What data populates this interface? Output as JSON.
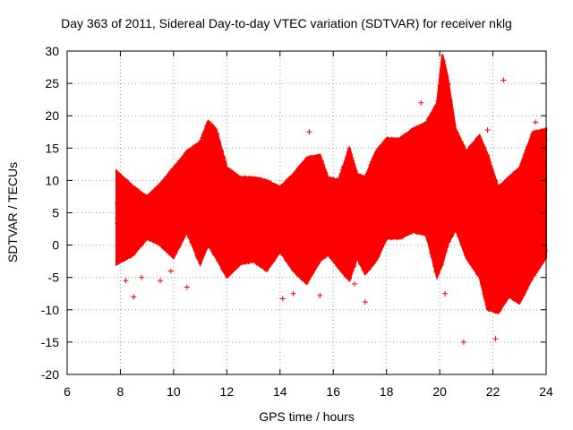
{
  "chart_data": {
    "type": "scatter",
    "title": "Day 363 of 2011, Sidereal Day-to-day VTEC variation (SDTVAR) for receiver nklg",
    "xlabel": "GPS time / hours",
    "ylabel": "SDTVAR / TECUs",
    "xlim": [
      6,
      24
    ],
    "ylim": [
      -20,
      30
    ],
    "xticks": [
      6,
      8,
      10,
      12,
      14,
      16,
      18,
      20,
      22,
      24
    ],
    "yticks": [
      -20,
      -15,
      -10,
      -5,
      0,
      5,
      10,
      15,
      20,
      25,
      30
    ],
    "grid": true,
    "marker": "+",
    "color": "#ff0000",
    "envelope": {
      "x": [
        7.85,
        8.5,
        9.0,
        9.5,
        10.0,
        10.5,
        11.0,
        11.3,
        11.6,
        12.0,
        12.5,
        13.0,
        13.5,
        14.0,
        14.5,
        15.0,
        15.5,
        15.8,
        16.2,
        16.6,
        16.9,
        17.2,
        17.6,
        18.0,
        18.5,
        19.0,
        19.5,
        19.9,
        20.1,
        20.3,
        20.6,
        21.0,
        21.5,
        21.8,
        22.2,
        22.6,
        23.0,
        23.5,
        24.0
      ],
      "upper": [
        11.5,
        9.0,
        7.5,
        9.5,
        12.0,
        14.5,
        16.0,
        19.2,
        18.0,
        12.0,
        10.5,
        10.5,
        10.0,
        9.0,
        11.0,
        13.5,
        14.0,
        10.5,
        10.0,
        15.0,
        11.0,
        10.5,
        14.5,
        16.5,
        16.5,
        18.0,
        19.0,
        22.0,
        29.5,
        26.0,
        18.0,
        14.5,
        17.0,
        14.0,
        9.0,
        10.5,
        12.0,
        17.5,
        18.0
      ],
      "lower": [
        -3.0,
        -1.5,
        1.0,
        0.0,
        -2.0,
        2.0,
        -3.0,
        0.0,
        -2.0,
        -5.0,
        -3.0,
        -2.5,
        -4.0,
        -1.0,
        -4.0,
        -6.0,
        -2.5,
        -1.5,
        -3.5,
        -5.5,
        -2.0,
        -4.5,
        -2.5,
        1.0,
        1.0,
        2.0,
        1.5,
        -5.0,
        -3.0,
        0.0,
        2.5,
        -2.0,
        -5.0,
        -10.0,
        -10.5,
        -8.0,
        -9.0,
        -5.0,
        -2.0
      ]
    },
    "outliers": [
      {
        "x": 8.2,
        "y": -5.5
      },
      {
        "x": 8.5,
        "y": -8.0
      },
      {
        "x": 8.8,
        "y": -5.0
      },
      {
        "x": 9.5,
        "y": -5.5
      },
      {
        "x": 9.9,
        "y": -4.0
      },
      {
        "x": 10.5,
        "y": -6.5
      },
      {
        "x": 14.1,
        "y": -8.3
      },
      {
        "x": 14.5,
        "y": -7.5
      },
      {
        "x": 15.5,
        "y": -7.8
      },
      {
        "x": 15.1,
        "y": 17.5
      },
      {
        "x": 17.2,
        "y": -8.8
      },
      {
        "x": 19.3,
        "y": 22.0
      },
      {
        "x": 20.9,
        "y": -15.0
      },
      {
        "x": 22.4,
        "y": 25.5
      },
      {
        "x": 21.8,
        "y": 17.8
      },
      {
        "x": 22.1,
        "y": -14.5
      },
      {
        "x": 23.6,
        "y": 19.0
      },
      {
        "x": 20.2,
        "y": -7.5
      },
      {
        "x": 12.1,
        "y": -4.0
      },
      {
        "x": 16.8,
        "y": -6.0
      }
    ]
  }
}
